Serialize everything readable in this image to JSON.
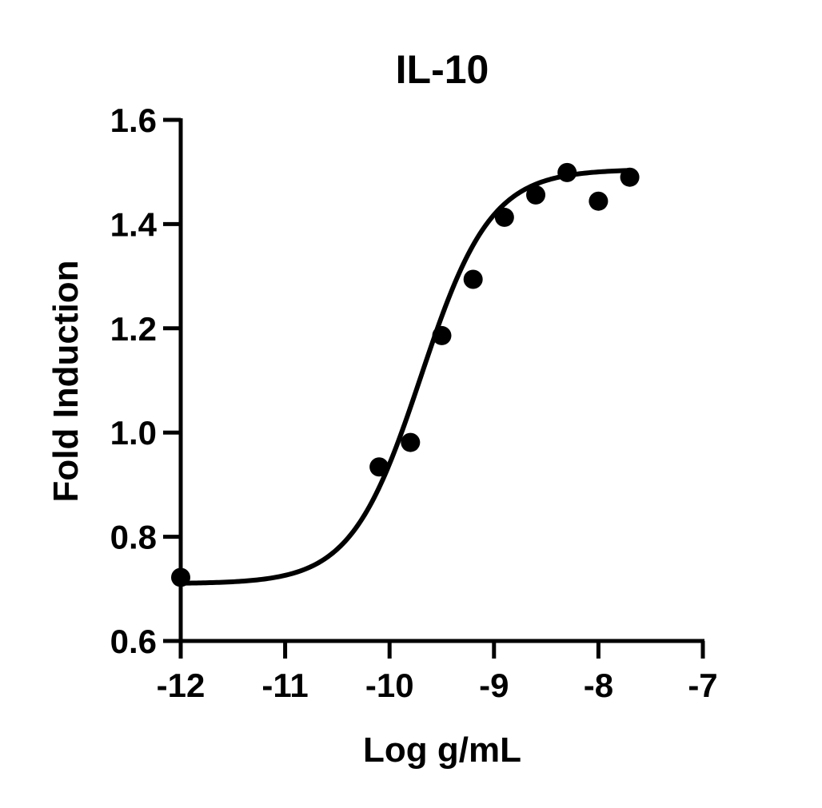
{
  "chart_data": {
    "type": "scatter",
    "title": "IL-10",
    "xlabel": "Log g/mL",
    "ylabel": "Fold Induction",
    "xlim": [
      -12,
      -7
    ],
    "ylim": [
      0.6,
      1.6
    ],
    "xticks": [
      -12,
      -11,
      -10,
      -9,
      -8,
      -7
    ],
    "yticks": [
      0.6,
      0.8,
      1.0,
      1.2,
      1.4,
      1.6
    ],
    "xtick_labels": [
      "-12",
      "-11",
      "-10",
      "-9",
      "-8",
      "-7"
    ],
    "ytick_labels": [
      "0.6",
      "0.8",
      "1.0",
      "1.2",
      "1.4",
      "1.6"
    ],
    "grid": false,
    "legend": "none",
    "series": [
      {
        "points": [
          {
            "x": -12.0,
            "y": 0.722
          },
          {
            "x": -10.1,
            "y": 0.934
          },
          {
            "x": -9.8,
            "y": 0.981
          },
          {
            "x": -9.5,
            "y": 1.186
          },
          {
            "x": -9.2,
            "y": 1.294
          },
          {
            "x": -8.9,
            "y": 1.413
          },
          {
            "x": -8.6,
            "y": 1.456
          },
          {
            "x": -8.3,
            "y": 1.499
          },
          {
            "x": -8.0,
            "y": 1.444
          },
          {
            "x": -7.7,
            "y": 1.49
          }
        ],
        "fit": {
          "model": "4PL",
          "bottom": 0.71,
          "top": 1.505,
          "logEC50": -9.7,
          "hill": 1.3,
          "x_range": [
            -12,
            -7.7
          ]
        },
        "color": "#000000"
      }
    ]
  }
}
